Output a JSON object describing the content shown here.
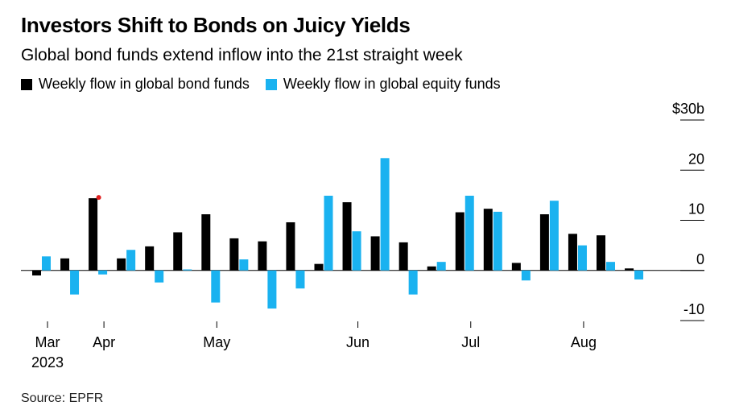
{
  "title": "Investors Shift to Bonds on Juicy Yields",
  "subtitle": "Global bond funds extend inflow into the 21st straight week",
  "source": "Source: EPFR",
  "colors": {
    "bond": "#000000",
    "equity": "#1ab2f0",
    "marker": "#e02020",
    "axis": "#000000"
  },
  "chart_data": {
    "type": "bar",
    "x_tick_labels": [
      "Mar\n2023",
      "Apr",
      "May",
      "Jun",
      "Jul",
      "Aug"
    ],
    "x_tick_weeks": [
      0,
      2,
      6,
      11,
      15,
      19
    ],
    "weeks": 22,
    "y_tick_labels": [
      "$30b",
      "20",
      "10",
      "0",
      "-10"
    ],
    "y_ticks": [
      30,
      20,
      10,
      0,
      -10
    ],
    "ylim": [
      -10,
      30
    ],
    "grid": false,
    "legend_position": "top-left",
    "series": [
      {
        "name": "Weekly flow in global bond funds",
        "values": [
          -1,
          2.4,
          14.4,
          2.4,
          4.8,
          7.6,
          11.2,
          6.4,
          5.8,
          9.6,
          1.3,
          13.6,
          6.8,
          5.6,
          0.8,
          11.6,
          12.3,
          1.5,
          11.2,
          7.3,
          7.0,
          0.4
        ]
      },
      {
        "name": "Weekly flow in global equity funds",
        "values": [
          2.8,
          -4.8,
          -0.8,
          4.1,
          -2.4,
          0.2,
          -6.4,
          2.2,
          -7.6,
          -3.6,
          14.9,
          7.8,
          22.4,
          -4.8,
          1.7,
          14.9,
          11.7,
          -2,
          13.9,
          5.0,
          1.7,
          -1.8
        ]
      }
    ],
    "annotation": "red dot marks the start of the inflow streak"
  }
}
